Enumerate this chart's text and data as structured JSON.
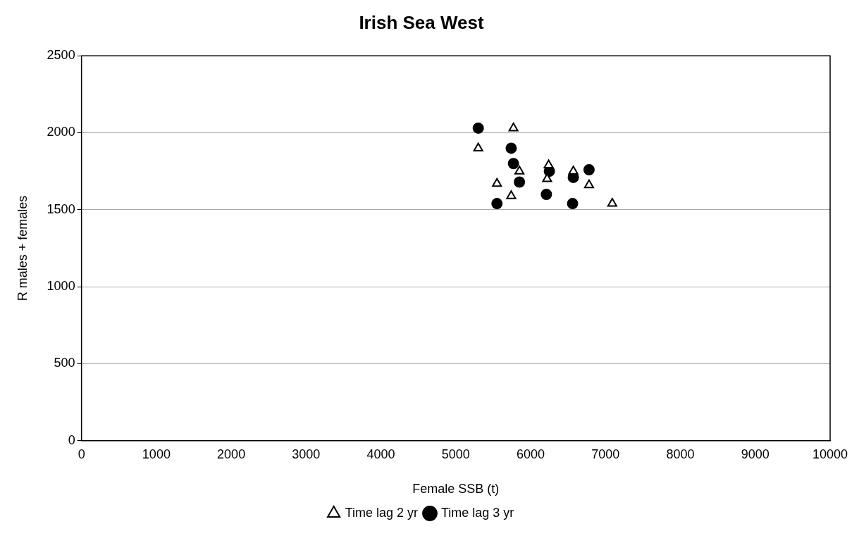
{
  "chart_data": {
    "type": "scatter",
    "title": "Irish Sea West",
    "xlabel": "Female SSB (t)",
    "ylabel": "R males + females",
    "xlim": [
      0,
      10000
    ],
    "xticks": [
      0,
      1000,
      2000,
      3000,
      4000,
      5000,
      6000,
      7000,
      8000,
      9000,
      10000
    ],
    "ylim": [
      0,
      2500
    ],
    "yticks": [
      0,
      500,
      1000,
      1500,
      2000,
      2500
    ],
    "grid": "y",
    "legend": "bottom",
    "series": [
      {
        "name": "Time lag 2 yr",
        "color": "#000000",
        "marker": "triangle",
        "x": [
          5300,
          5770,
          5550,
          5740,
          5850,
          6240,
          6220,
          6570,
          6780,
          7090
        ],
        "values": [
          1900,
          2030,
          1670,
          1590,
          1750,
          1790,
          1700,
          1750,
          1660,
          1540
        ]
      },
      {
        "name": "Time lag 3 yr",
        "color": "#000000",
        "marker": "circle",
        "x": [
          5300,
          5740,
          5770,
          5850,
          5550,
          6210,
          6250,
          6570,
          6780,
          6560
        ],
        "values": [
          2030,
          1900,
          1800,
          1680,
          1540,
          1600,
          1750,
          1710,
          1760,
          1540
        ]
      }
    ]
  }
}
